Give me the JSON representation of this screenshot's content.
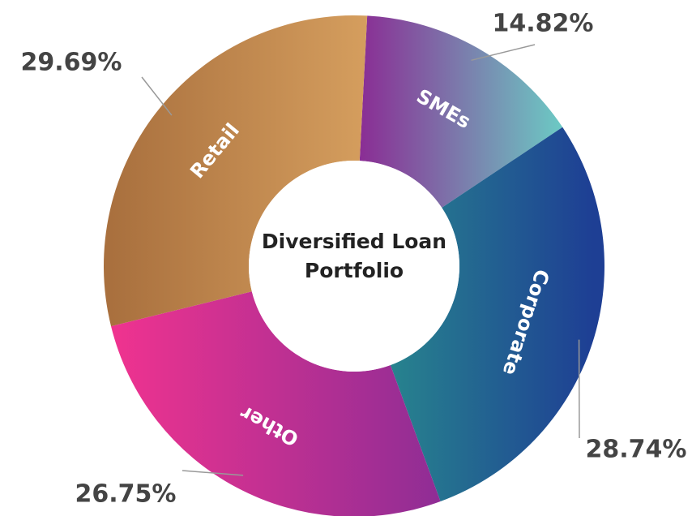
{
  "chart_data": {
    "type": "donut",
    "title": "Diversified Loan Portfolio",
    "categories": [
      "SMEs",
      "Corporate",
      "Other",
      "Retail"
    ],
    "values": [
      14.82,
      28.74,
      26.75,
      29.69
    ],
    "value_labels": [
      "14.82%",
      "28.74%",
      "26.75%",
      "29.69%"
    ],
    "colors": [
      [
        "#8a2d94",
        "#6ccac4"
      ],
      [
        "#27838e",
        "#1e3f94"
      ],
      [
        "#f0338f",
        "#8f2d95"
      ],
      [
        "#a9703e",
        "#d59e5e"
      ]
    ]
  }
}
